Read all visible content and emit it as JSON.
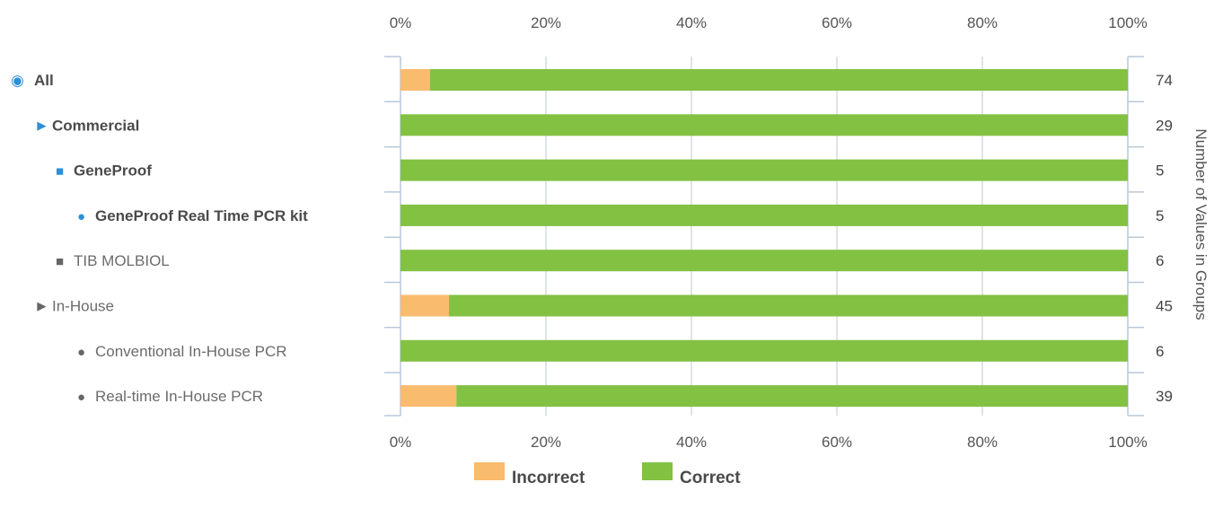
{
  "chart_data": {
    "type": "bar",
    "stacked": true,
    "orientation": "horizontal",
    "x_ticks": [
      "0%",
      "20%",
      "40%",
      "60%",
      "80%",
      "100%"
    ],
    "xlim": [
      0,
      100
    ],
    "right_axis_title": "Number of Values in Groups",
    "categories": [
      {
        "label": "All",
        "marker": "◉",
        "level": 0,
        "highlighted": true
      },
      {
        "label": "Commercial",
        "marker": "►",
        "level": 1,
        "highlighted": true
      },
      {
        "label": "GeneProof",
        "marker": "■",
        "level": 2,
        "highlighted": true
      },
      {
        "label": "GeneProof Real Time PCR kit",
        "marker": "●",
        "level": 3,
        "highlighted": true
      },
      {
        "label": "TIB MOLBIOL",
        "marker": "■",
        "level": 2,
        "highlighted": false
      },
      {
        "label": "In-House",
        "marker": "►",
        "level": 1,
        "highlighted": false
      },
      {
        "label": "Conventional In-House PCR",
        "marker": "●",
        "level": 3,
        "highlighted": false
      },
      {
        "label": "Real-time In-House PCR",
        "marker": "●",
        "level": 3,
        "highlighted": false
      }
    ],
    "counts": [
      "74",
      "29",
      "5",
      "5",
      "6",
      "45",
      "6",
      "39"
    ],
    "series": [
      {
        "name": "Incorrect",
        "color": "#f9bb6e",
        "values": [
          4.05,
          0,
          0,
          0,
          0,
          6.67,
          0,
          7.69
        ]
      },
      {
        "name": "Correct",
        "color": "#83c143",
        "values": [
          95.95,
          100,
          100,
          100,
          100,
          93.33,
          100,
          92.31
        ]
      }
    ],
    "legend_position": "bottom-center",
    "grid": true
  }
}
